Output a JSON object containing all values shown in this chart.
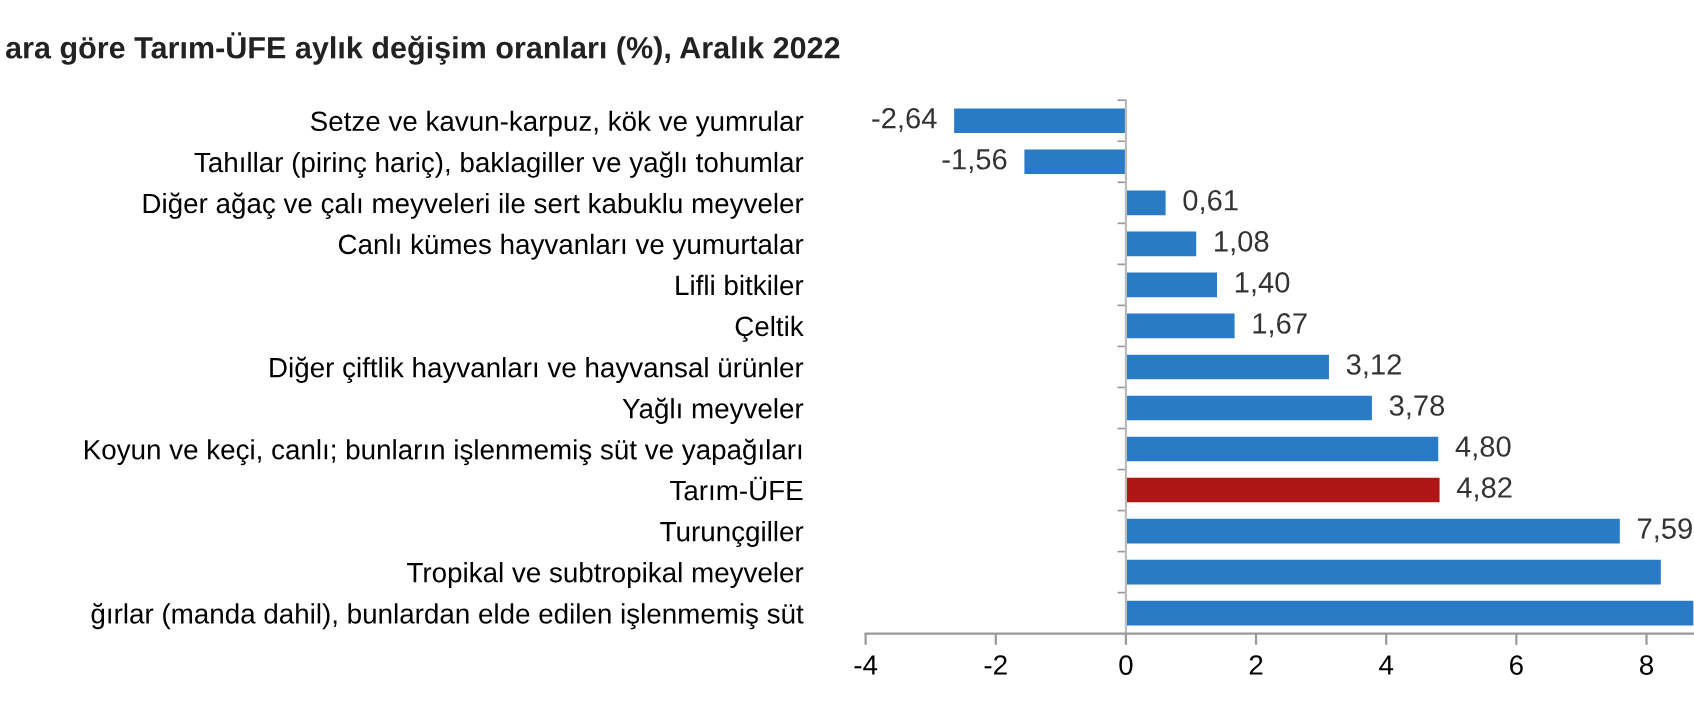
{
  "chart_data": {
    "type": "bar",
    "orientation": "horizontal",
    "title": "ara göre Tarım-ÜFE aylık değişim oranları (%), Aralık 2022",
    "categories": [
      "Setze ve kavun-karpuz, kök ve yumrular",
      "Tahıllar (pirinç hariç), baklagiller ve yağlı tohumlar",
      "Diğer ağaç ve çalı meyveleri ile sert kabuklu meyveler",
      "Canlı kümes hayvanları ve yumurtalar",
      "Lifli bitkiler",
      "Çeltik",
      "Diğer çiftlik hayvanları ve hayvansal ürünler",
      "Yağlı meyveler",
      "Koyun ve keçi, canlı; bunların işlenmemiş süt ve yapağıları",
      "Tarım-ÜFE",
      "Turunçgiller",
      "Tropikal ve subtropikal meyveler",
      "ğırlar (manda dahil), bunlardan elde edilen işlenmemiş süt"
    ],
    "values": [
      -2.64,
      -1.56,
      0.61,
      1.08,
      1.4,
      1.67,
      3.12,
      3.78,
      4.8,
      4.82,
      7.59,
      8.22,
      8.72
    ],
    "value_labels": [
      "-2,64",
      "-1,56",
      "0,61",
      "1,08",
      "1,40",
      "1,67",
      "3,12",
      "3,78",
      "4,80",
      "4,82",
      "7,59",
      null,
      null
    ],
    "colors": [
      "#2a7bc6",
      "#2a7bc6",
      "#2a7bc6",
      "#2a7bc6",
      "#2a7bc6",
      "#2a7bc6",
      "#2a7bc6",
      "#2a7bc6",
      "#2a7bc6",
      "#b01516",
      "#2a7bc6",
      "#2a7bc6",
      "#2a7bc6"
    ],
    "xlim": [
      -4,
      8.73
    ],
    "xticks": [
      -4,
      -2,
      0,
      2,
      4,
      6,
      8
    ],
    "legend": false
  }
}
